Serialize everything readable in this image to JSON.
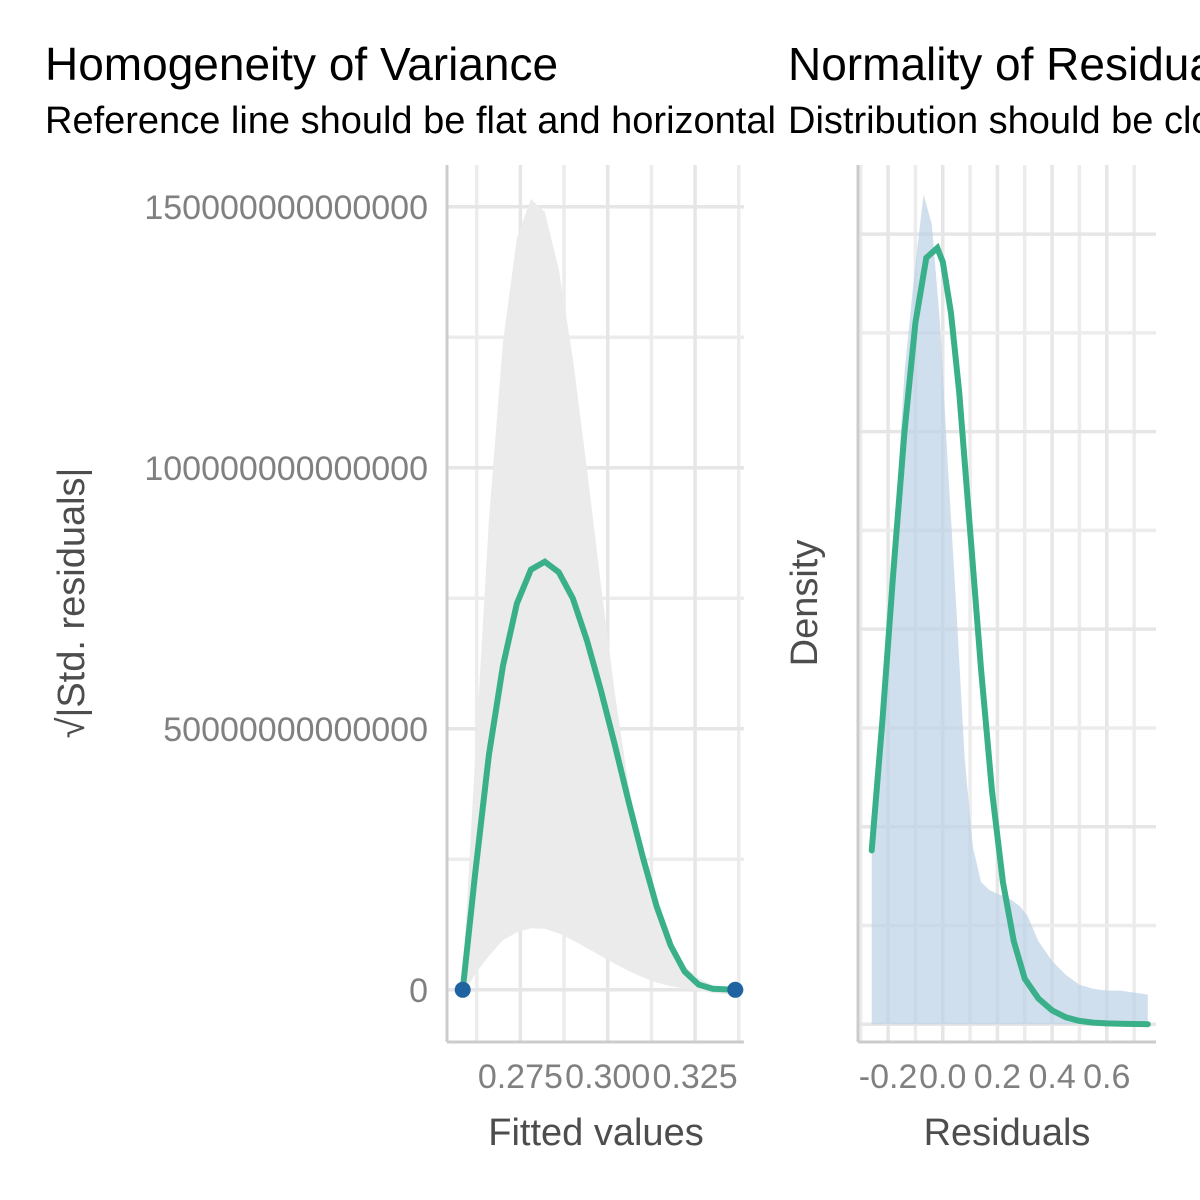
{
  "chart_data": [
    {
      "type": "line",
      "title": "Homogeneity of Variance",
      "subtitle": "Reference line should be flat and horizontal",
      "xlabel": "Fitted values",
      "ylabel": "√|Std. residuals|",
      "xlim": [
        0.254,
        0.339
      ],
      "ylim": [
        -10000000000000,
        158000000000000
      ],
      "xticks": [
        {
          "value": 0.275,
          "label": "0.275"
        },
        {
          "value": 0.3,
          "label": "0.300"
        },
        {
          "value": 0.325,
          "label": "0.325"
        }
      ],
      "yticks": [
        {
          "value": 0,
          "label": "0"
        },
        {
          "value": 50000000000000,
          "label": "50000000000000"
        },
        {
          "value": 100000000000000,
          "label": "100000000000000"
        },
        {
          "value": 150000000000000,
          "label": "150000000000000"
        }
      ],
      "grid": true,
      "points": {
        "name": "observations",
        "color": "#1f63a0",
        "x": [
          0.2585,
          0.3365
        ],
        "y": [
          0,
          0
        ]
      },
      "smooth": {
        "color": "#3ab08a",
        "x": [
          0.2585,
          0.262,
          0.266,
          0.27,
          0.274,
          0.278,
          0.282,
          0.286,
          0.29,
          0.294,
          0.298,
          0.302,
          0.306,
          0.31,
          0.314,
          0.318,
          0.322,
          0.326,
          0.33,
          0.3365
        ],
        "y": [
          0,
          22000000000000,
          45000000000000,
          62000000000000,
          74000000000000,
          80500000000000,
          82000000000000,
          80000000000000,
          75000000000000,
          67000000000000,
          57500000000000,
          47000000000000,
          36000000000000,
          25500000000000,
          16000000000000,
          8500000000000,
          3500000000000,
          1000000000000,
          200000000000,
          0
        ]
      },
      "band": {
        "color": "#ebebeb",
        "x": [
          0.2585,
          0.262,
          0.266,
          0.27,
          0.274,
          0.278,
          0.282,
          0.286,
          0.29,
          0.294,
          0.298,
          0.302,
          0.306,
          0.31,
          0.314,
          0.318,
          0.322,
          0.326,
          0.33,
          0.3365
        ],
        "upper": [
          2000000000000,
          44000000000000,
          90000000000000,
          124000000000000,
          144000000000000,
          151500000000000,
          149000000000000,
          138000000000000,
          121000000000000,
          100000000000000,
          78000000000000,
          57000000000000,
          39000000000000,
          25000000000000,
          15000000000000,
          8500000000000,
          4500000000000,
          2200000000000,
          900000000000,
          0
        ],
        "lower": [
          -1000000000000,
          3000000000000,
          6500000000000,
          9500000000000,
          11000000000000,
          11800000000000,
          11700000000000,
          10800000000000,
          9500000000000,
          8000000000000,
          6500000000000,
          5000000000000,
          3600000000000,
          2400000000000,
          1400000000000,
          700000000000,
          200000000000,
          -200000000000,
          -600000000000,
          -1000000000000
        ]
      }
    },
    {
      "type": "area",
      "title": "Normality of Residuals",
      "subtitle": "Distribution should be close to the normal curve",
      "xlabel": "Residuals",
      "ylabel": "Density",
      "xlim": [
        -0.31,
        0.78
      ],
      "ylim": [
        -0.09,
        4.35
      ],
      "xticks": [
        {
          "value": -0.2,
          "label": "-0.2"
        },
        {
          "value": 0.0,
          "label": "0.0"
        },
        {
          "value": 0.2,
          "label": "0.2"
        },
        {
          "value": 0.4,
          "label": "0.4"
        },
        {
          "value": 0.6,
          "label": "0.6"
        }
      ],
      "grid": true,
      "density": {
        "color": "#bcd2e5",
        "x": [
          -0.26,
          -0.22,
          -0.18,
          -0.14,
          -0.1,
          -0.07,
          -0.04,
          -0.01,
          0.02,
          0.05,
          0.08,
          0.11,
          0.14,
          0.17,
          0.2,
          0.22,
          0.25,
          0.28,
          0.31,
          0.35,
          0.4,
          0.45,
          0.5,
          0.55,
          0.6,
          0.65,
          0.7,
          0.75
        ],
        "y": [
          0.85,
          1.5,
          2.4,
          3.3,
          3.85,
          4.2,
          4.05,
          3.55,
          2.8,
          2.1,
          1.35,
          0.9,
          0.72,
          0.68,
          0.66,
          0.65,
          0.63,
          0.6,
          0.55,
          0.42,
          0.32,
          0.25,
          0.2,
          0.18,
          0.17,
          0.17,
          0.16,
          0.15
        ]
      },
      "normal_curve": {
        "color": "#3ab08a",
        "x": [
          -0.26,
          -0.22,
          -0.18,
          -0.14,
          -0.1,
          -0.06,
          -0.02,
          0.0,
          0.03,
          0.06,
          0.1,
          0.14,
          0.18,
          0.22,
          0.26,
          0.3,
          0.35,
          0.4,
          0.45,
          0.5,
          0.55,
          0.6,
          0.65,
          0.7,
          0.75
        ],
        "y": [
          0.88,
          1.55,
          2.3,
          3.0,
          3.55,
          3.88,
          3.93,
          3.86,
          3.6,
          3.2,
          2.5,
          1.8,
          1.18,
          0.72,
          0.42,
          0.23,
          0.13,
          0.07,
          0.035,
          0.017,
          0.008,
          0.004,
          0.002,
          0.001,
          0.0
        ]
      }
    }
  ]
}
